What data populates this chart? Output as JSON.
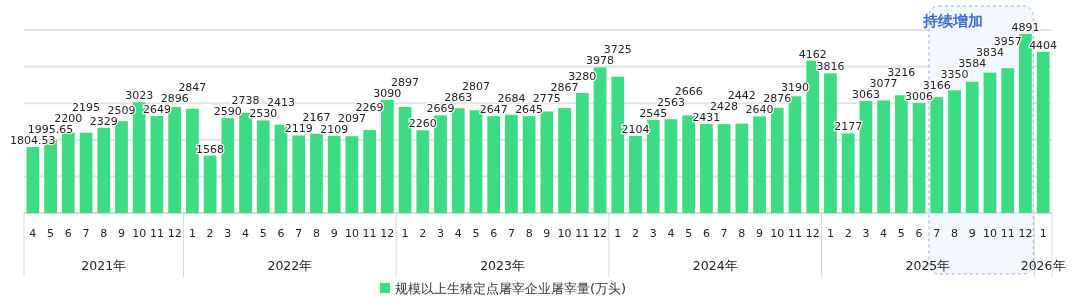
{
  "chart_data": {
    "type": "bar",
    "categories": [
      "4",
      "5",
      "6",
      "7",
      "8",
      "9",
      "10",
      "11",
      "12",
      "1",
      "2",
      "3",
      "4",
      "5",
      "6",
      "7",
      "8",
      "9",
      "10",
      "11",
      "12",
      "1",
      "2",
      "3",
      "4",
      "5",
      "6",
      "7",
      "8",
      "9",
      "10",
      "11",
      "12",
      "1",
      "2",
      "3",
      "4",
      "5",
      "6",
      "7",
      "8",
      "9",
      "10",
      "11",
      "12",
      "1",
      "2",
      "3",
      "4",
      "5",
      "6",
      "7",
      "8",
      "9",
      "10",
      "11",
      "12",
      "1"
    ],
    "series": [
      {
        "name": "规模以上生猪定点屠宰企业屠宰量(万头)",
        "color": "#3ddc84",
        "values": [
          1804.53,
          1995.65,
          2200,
          2195,
          2329,
          2509,
          3023,
          2649,
          2896,
          2847,
          1568,
          2590,
          2738,
          2530,
          2413,
          2119,
          2167,
          2109,
          2097,
          2269,
          3090,
          2897,
          2260,
          2669,
          2863,
          2807,
          2647,
          2684,
          2645,
          2775,
          2867,
          3280,
          3978,
          3725,
          2104,
          2545,
          2563,
          2666,
          2431,
          2428,
          2442,
          2640,
          2876,
          3190,
          4162,
          3816,
          2177,
          3063,
          3077,
          3216,
          3006,
          3166,
          3350,
          3584,
          3834,
          3957,
          4891,
          4404
        ]
      }
    ],
    "ylim": [
      0,
      5000
    ],
    "yticks": [
      {
        "value": 0,
        "label": null
      },
      {
        "value": 1000,
        "label": null
      },
      {
        "value": 2000,
        "label": null
      },
      {
        "value": 3000,
        "label": null
      },
      {
        "value": 4000,
        "label": null
      },
      {
        "value": 5000,
        "label": null
      }
    ],
    "tick_labels": "x",
    "grid": "y",
    "data_labels": true,
    "legend": "bottom",
    "annotations": [
      "2021年",
      "2022年",
      "2023年",
      "2024年",
      "2025年",
      "2026年",
      "持续增加"
    ]
  }
}
